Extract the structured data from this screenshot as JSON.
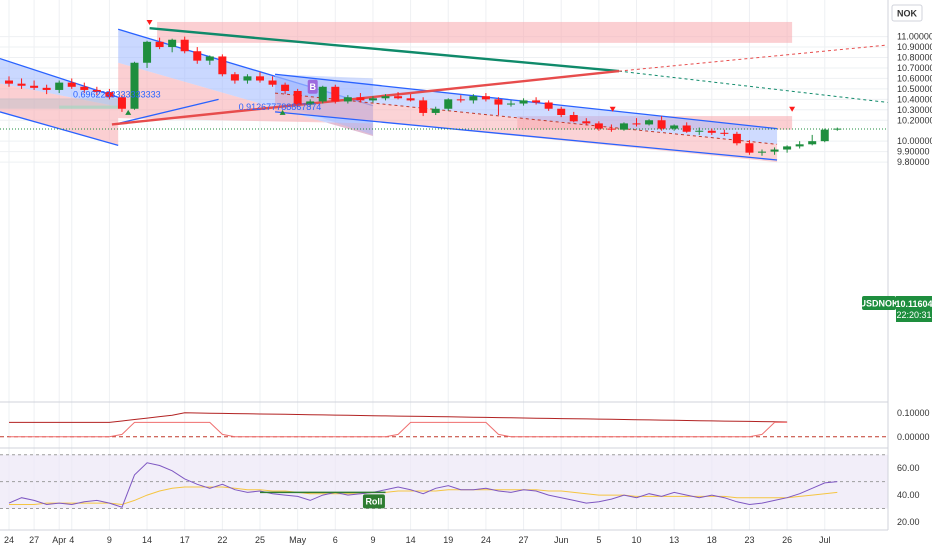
{
  "chart_data": {
    "type": "candlestick",
    "currency": "NOK",
    "ticker": {
      "symbol": "USDNOK",
      "price": "10.11604",
      "countdown": "22:20:31"
    },
    "price_axis": {
      "ylim": [
        9.8,
        11.1
      ],
      "ticks": [
        {
          "v": 11.0,
          "label": "11.00000"
        },
        {
          "v": 10.9,
          "label": "10.90000"
        },
        {
          "v": 10.8,
          "label": "10.80000"
        },
        {
          "v": 10.7,
          "label": "10.70000"
        },
        {
          "v": 10.6,
          "label": "10.60000"
        },
        {
          "v": 10.5,
          "label": "10.50000"
        },
        {
          "v": 10.4,
          "label": "10.40000"
        },
        {
          "v": 10.3,
          "label": "10.30000"
        },
        {
          "v": 10.2,
          "label": "10.20000"
        },
        {
          "v": 10.0,
          "label": "10.00000"
        },
        {
          "v": 9.9,
          "label": "9.90000"
        },
        {
          "v": 9.8,
          "label": "9.80000"
        }
      ]
    },
    "x_axis": {
      "ticks": [
        {
          "i": 0,
          "label": "24"
        },
        {
          "i": 2,
          "label": "27"
        },
        {
          "i": 4,
          "label": "Apr"
        },
        {
          "i": 5,
          "label": "4"
        },
        {
          "i": 8,
          "label": "9"
        },
        {
          "i": 11,
          "label": "14"
        },
        {
          "i": 14,
          "label": "17"
        },
        {
          "i": 17,
          "label": "22"
        },
        {
          "i": 20,
          "label": "25"
        },
        {
          "i": 23,
          "label": "May"
        },
        {
          "i": 26,
          "label": "6"
        },
        {
          "i": 29,
          "label": "9"
        },
        {
          "i": 32,
          "label": "14"
        },
        {
          "i": 35,
          "label": "19"
        },
        {
          "i": 38,
          "label": "24"
        },
        {
          "i": 41,
          "label": "27"
        },
        {
          "i": 44,
          "label": "Jun"
        },
        {
          "i": 47,
          "label": "5"
        },
        {
          "i": 50,
          "label": "10"
        },
        {
          "i": 53,
          "label": "13"
        },
        {
          "i": 56,
          "label": "18"
        },
        {
          "i": 59,
          "label": "23"
        },
        {
          "i": 62,
          "label": "26"
        },
        {
          "i": 65,
          "label": "Jul"
        }
      ]
    },
    "candles": [
      [
        10.58,
        10.62,
        10.52,
        10.55
      ],
      [
        10.55,
        10.6,
        10.5,
        10.53
      ],
      [
        10.53,
        10.58,
        10.49,
        10.51
      ],
      [
        10.51,
        10.54,
        10.45,
        10.49
      ],
      [
        10.49,
        10.58,
        10.46,
        10.56
      ],
      [
        10.56,
        10.6,
        10.5,
        10.52
      ],
      [
        10.52,
        10.56,
        10.46,
        10.49
      ],
      [
        10.49,
        10.52,
        10.44,
        10.47
      ],
      [
        10.47,
        10.5,
        10.4,
        10.42
      ],
      [
        10.42,
        10.44,
        10.28,
        10.31
      ],
      [
        10.31,
        10.76,
        10.3,
        10.75
      ],
      [
        10.75,
        10.96,
        10.7,
        10.95
      ],
      [
        10.95,
        10.99,
        10.88,
        10.9
      ],
      [
        10.9,
        10.98,
        10.85,
        10.97
      ],
      [
        10.97,
        11.0,
        10.84,
        10.86
      ],
      [
        10.86,
        10.9,
        10.74,
        10.77
      ],
      [
        10.77,
        10.82,
        10.73,
        10.81
      ],
      [
        10.81,
        10.83,
        10.62,
        10.64
      ],
      [
        10.64,
        10.66,
        10.55,
        10.58
      ],
      [
        10.58,
        10.64,
        10.55,
        10.62
      ],
      [
        10.62,
        10.66,
        10.56,
        10.58
      ],
      [
        10.58,
        10.62,
        10.52,
        10.54
      ],
      [
        10.54,
        10.56,
        10.45,
        10.48
      ],
      [
        10.48,
        10.5,
        10.33,
        10.35
      ],
      [
        10.35,
        10.4,
        10.33,
        10.38
      ],
      [
        10.38,
        10.53,
        10.36,
        10.52
      ],
      [
        10.52,
        10.54,
        10.36,
        10.38
      ],
      [
        10.38,
        10.44,
        10.36,
        10.42
      ],
      [
        10.42,
        10.46,
        10.37,
        10.39
      ],
      [
        10.39,
        10.43,
        10.37,
        10.41
      ],
      [
        10.41,
        10.45,
        10.39,
        10.43
      ],
      [
        10.43,
        10.47,
        10.4,
        10.41
      ],
      [
        10.41,
        10.45,
        10.38,
        10.39
      ],
      [
        10.39,
        10.42,
        10.24,
        10.27
      ],
      [
        10.27,
        10.33,
        10.25,
        10.31
      ],
      [
        10.31,
        10.41,
        10.29,
        10.4
      ],
      [
        10.4,
        10.44,
        10.37,
        10.39
      ],
      [
        10.39,
        10.45,
        10.36,
        10.43
      ],
      [
        10.43,
        10.46,
        10.38,
        10.4
      ],
      [
        10.4,
        10.42,
        10.25,
        10.35
      ],
      [
        10.35,
        10.39,
        10.33,
        10.36
      ],
      [
        10.36,
        10.41,
        10.34,
        10.39
      ],
      [
        10.39,
        10.42,
        10.35,
        10.37
      ],
      [
        10.37,
        10.39,
        10.29,
        10.31
      ],
      [
        10.31,
        10.33,
        10.23,
        10.25
      ],
      [
        10.25,
        10.28,
        10.18,
        10.19
      ],
      [
        10.19,
        10.22,
        10.15,
        10.17
      ],
      [
        10.17,
        10.19,
        10.1,
        10.12
      ],
      [
        10.12,
        10.16,
        10.09,
        10.11
      ],
      [
        10.11,
        10.18,
        10.1,
        10.17
      ],
      [
        10.17,
        10.22,
        10.14,
        10.16
      ],
      [
        10.16,
        10.21,
        10.15,
        10.2
      ],
      [
        10.2,
        10.24,
        10.1,
        10.12
      ],
      [
        10.12,
        10.16,
        10.1,
        10.15
      ],
      [
        10.15,
        10.18,
        10.08,
        10.09
      ],
      [
        10.09,
        10.13,
        10.06,
        10.1
      ],
      [
        10.1,
        10.12,
        10.06,
        10.08
      ],
      [
        10.08,
        10.11,
        10.05,
        10.07
      ],
      [
        10.07,
        10.09,
        9.96,
        9.98
      ],
      [
        9.98,
        10.01,
        9.87,
        9.89
      ],
      [
        9.89,
        9.92,
        9.86,
        9.9
      ],
      [
        9.9,
        9.94,
        9.87,
        9.92
      ],
      [
        9.92,
        9.96,
        9.89,
        9.95
      ],
      [
        9.95,
        10.0,
        9.93,
        9.97
      ],
      [
        9.97,
        10.06,
        9.96,
        10.0
      ],
      [
        10.0,
        10.12,
        9.99,
        10.11
      ],
      [
        10.11,
        10.13,
        10.1,
        10.12
      ]
    ],
    "annotations": {
      "fib_label_1": "0.6962233333333333",
      "fib_label_2": "0.912677788867874",
      "marker_b": "B",
      "pill_label": "Roll"
    },
    "oscillator_axis": [
      {
        "v": 0.1,
        "label": "0.10000"
      },
      {
        "v": 0.0,
        "label": "0.00000"
      }
    ],
    "rsi_axis": [
      {
        "v": 60,
        "label": "60.00"
      },
      {
        "v": 40,
        "label": "40.00"
      },
      {
        "v": 20,
        "label": "20.00"
      }
    ],
    "rsi": [
      34,
      38,
      36,
      33,
      34,
      33,
      35,
      36,
      34,
      31,
      55,
      64,
      62,
      58,
      52,
      48,
      45,
      48,
      44,
      42,
      43,
      41,
      40,
      39,
      36,
      40,
      42,
      40,
      41,
      42,
      44,
      46,
      44,
      41,
      45,
      47,
      44,
      44,
      45,
      43,
      42,
      44,
      43,
      40,
      38,
      36,
      34,
      35,
      37,
      40,
      38,
      41,
      39,
      42,
      40,
      38,
      40,
      38,
      35,
      33,
      34,
      36,
      38,
      41,
      45,
      49,
      50
    ],
    "rsi_ma": [
      33,
      33,
      33,
      34,
      34,
      34,
      34,
      34,
      34,
      33,
      36,
      40,
      43,
      45,
      46,
      46,
      46,
      46,
      45,
      44,
      44,
      43,
      43,
      42,
      41,
      41,
      41,
      41,
      41,
      42,
      42,
      43,
      43,
      43,
      43,
      44,
      44,
      44,
      44,
      44,
      44,
      44,
      44,
      43,
      43,
      42,
      41,
      40,
      40,
      40,
      39,
      39,
      39,
      39,
      39,
      39,
      39,
      39,
      38,
      38,
      38,
      38,
      38,
      39,
      40,
      41,
      42
    ],
    "colors": {
      "up": "#1e8e3e",
      "down": "#ff1a1a",
      "channel_blue": "#2962ff",
      "fill_blue": "#9fb8ff",
      "fill_red": "#f7a8ad",
      "teal": "#0f8a6a",
      "red_line": "#e74c4c",
      "rsi_line": "#7e57c2",
      "rsi_ma": "#f5c542"
    }
  }
}
